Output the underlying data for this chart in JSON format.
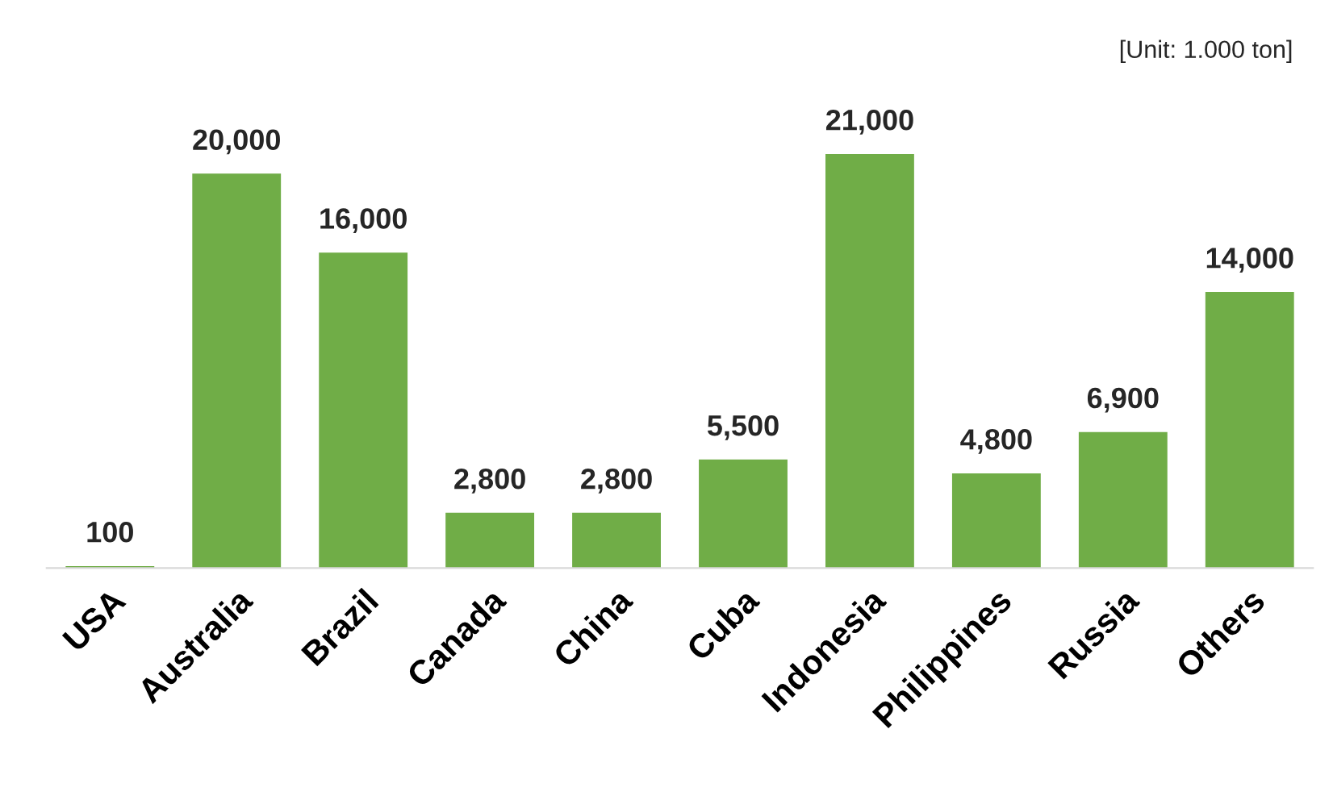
{
  "chart_data": {
    "type": "bar",
    "categories": [
      "USA",
      "Australia",
      "Brazil",
      "Canada",
      "China",
      "Cuba",
      "Indonesia",
      "Philippines",
      "Russia",
      "Others"
    ],
    "values": [
      100,
      20000,
      16000,
      2800,
      2800,
      5500,
      21000,
      4800,
      6900,
      14000
    ],
    "value_labels": [
      "100",
      "20,000",
      "16,000",
      "2,800",
      "2,800",
      "5,500",
      "21,000",
      "4,800",
      "6,900",
      "14,000"
    ],
    "color": "#70ad47",
    "annotations": [
      "[Unit: 1.000 ton]"
    ],
    "grid": false,
    "legend": false
  }
}
